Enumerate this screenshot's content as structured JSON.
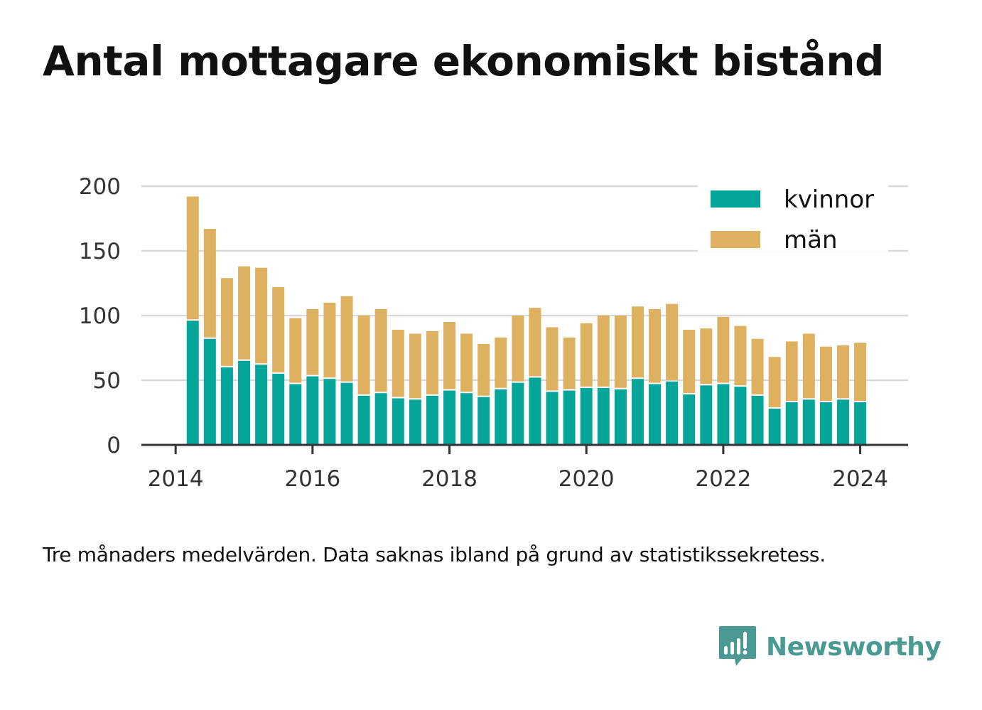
{
  "title": "Antal mottagare ekonomiskt bistånd",
  "note": "Tre månaders medelvärden. Data saknas ibland på grund av statistikssekretess.",
  "brand": "Newsworthy",
  "colors": {
    "kvinnor": "#05a59a",
    "man": "#ddb15f",
    "grid": "#d9d9d9",
    "axis": "#333333",
    "brand": "#4a9a93"
  },
  "chart_data": {
    "type": "bar",
    "stacked": true,
    "y_ticks": [
      "0",
      "50",
      "100",
      "150",
      "200"
    ],
    "x_ticks": [
      "2014",
      "2016",
      "2018",
      "2020",
      "2022",
      "2024"
    ],
    "ylim": [
      0,
      200
    ],
    "xlim": [
      2013.5,
      2024.7
    ],
    "legend_position": "top-right",
    "grid": true,
    "x": [
      2014.25,
      2014.5,
      2014.75,
      2015.0,
      2015.25,
      2015.5,
      2015.75,
      2016.0,
      2016.25,
      2016.5,
      2016.75,
      2017.0,
      2017.25,
      2017.5,
      2017.75,
      2018.0,
      2018.25,
      2018.5,
      2018.75,
      2019.0,
      2019.25,
      2019.5,
      2019.75,
      2020.0,
      2020.25,
      2020.5,
      2020.75,
      2021.0,
      2021.25,
      2021.5,
      2021.75,
      2022.0,
      2022.25,
      2022.5,
      2022.75,
      2023.0,
      2023.25,
      2023.5,
      2023.75,
      2024.0
    ],
    "series": [
      {
        "name": "kvinnor",
        "values": [
          96,
          82,
          60,
          65,
          62,
          55,
          47,
          53,
          51,
          48,
          38,
          40,
          36,
          35,
          38,
          42,
          40,
          37,
          43,
          48,
          52,
          41,
          42,
          44,
          44,
          43,
          51,
          47,
          49,
          39,
          46,
          47,
          45,
          38,
          28,
          33,
          35,
          33,
          35,
          33
        ]
      },
      {
        "name": "män",
        "values": [
          96,
          85,
          69,
          73,
          75,
          67,
          51,
          52,
          59,
          67,
          62,
          65,
          53,
          51,
          50,
          53,
          46,
          41,
          40,
          52,
          54,
          50,
          41,
          50,
          56,
          57,
          56,
          58,
          60,
          50,
          44,
          52,
          47,
          44,
          40,
          47,
          51,
          43,
          42,
          46
        ]
      }
    ]
  }
}
